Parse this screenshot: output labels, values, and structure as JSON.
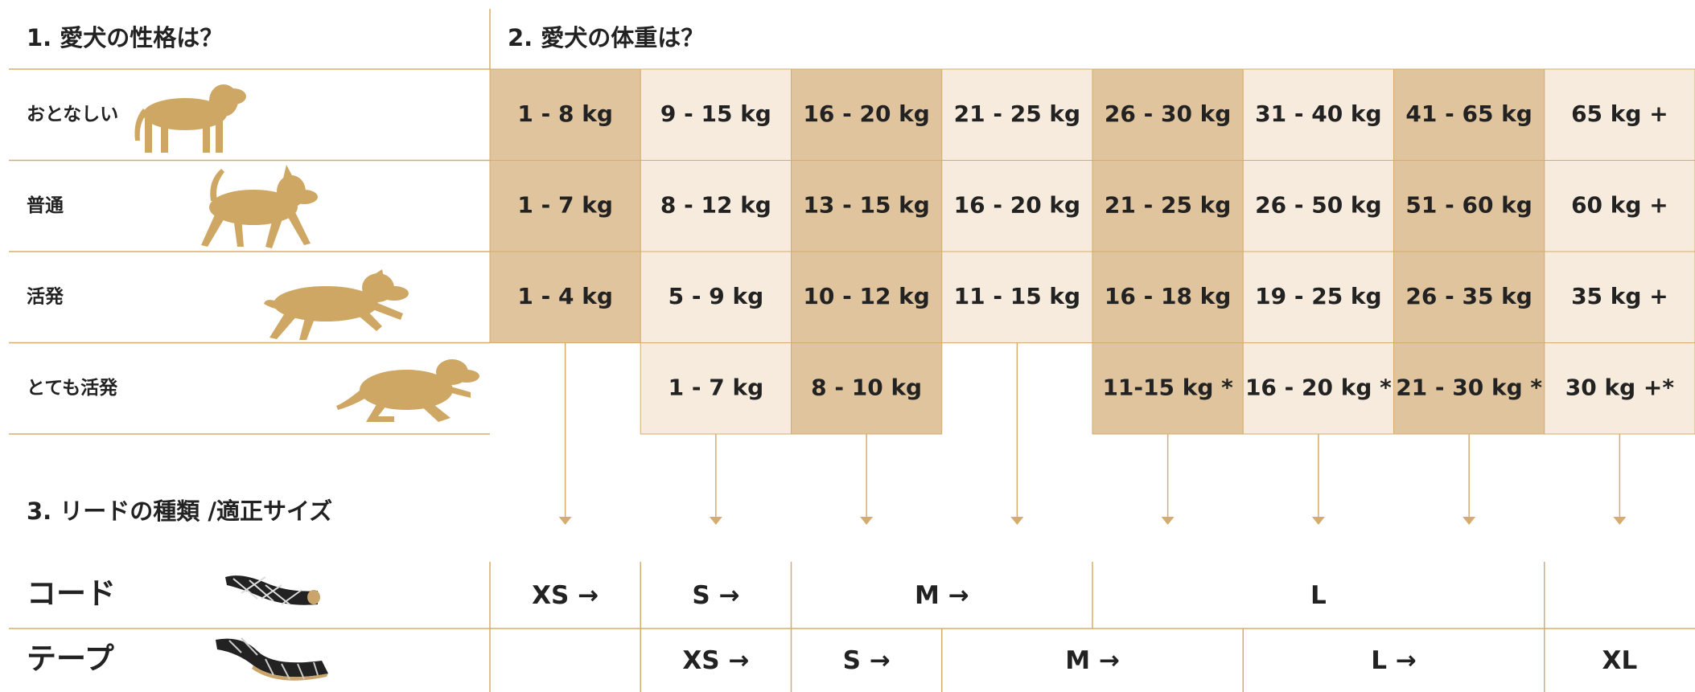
{
  "sections": {
    "temperament": "1. 愛犬の性格は？",
    "weight": "2. 愛犬の体重は？",
    "lead": "3. リードの種類 /適正サイズ"
  },
  "rows": [
    {
      "label": "おとなしい",
      "cells": [
        "1 - 8 kg",
        "9 - 15 kg",
        "16 - 20 kg",
        "21 - 25 kg",
        "26 - 30 kg",
        "31 - 40 kg",
        "41 - 65 kg",
        "65 kg +"
      ]
    },
    {
      "label": "普通",
      "cells": [
        "1 - 7 kg",
        "8 - 12 kg",
        "13 - 15 kg",
        "16 - 20 kg",
        "21 - 25 kg",
        "26 - 50 kg",
        "51 - 60 kg",
        "60 kg +"
      ]
    },
    {
      "label": "活発",
      "cells": [
        "1 - 4 kg",
        "5 - 9 kg",
        "10 - 12 kg",
        "11 - 15 kg",
        "16 - 18 kg",
        "19 - 25 kg",
        "26 - 35 kg",
        "35 kg +"
      ]
    },
    {
      "label": "とても活発",
      "cells": [
        null,
        "1 - 7 kg",
        "8 - 10 kg",
        null,
        "11-15 kg *",
        "16 - 20 kg *",
        "21 - 30 kg *",
        "30 kg +*"
      ]
    }
  ],
  "leads": [
    {
      "label": "コード",
      "sizes": [
        "XS →",
        "S →",
        "M →",
        "L"
      ]
    },
    {
      "label": "テープ",
      "sizes": [
        "XS →",
        "S →",
        "M →",
        "L →",
        "XL"
      ]
    }
  ]
}
